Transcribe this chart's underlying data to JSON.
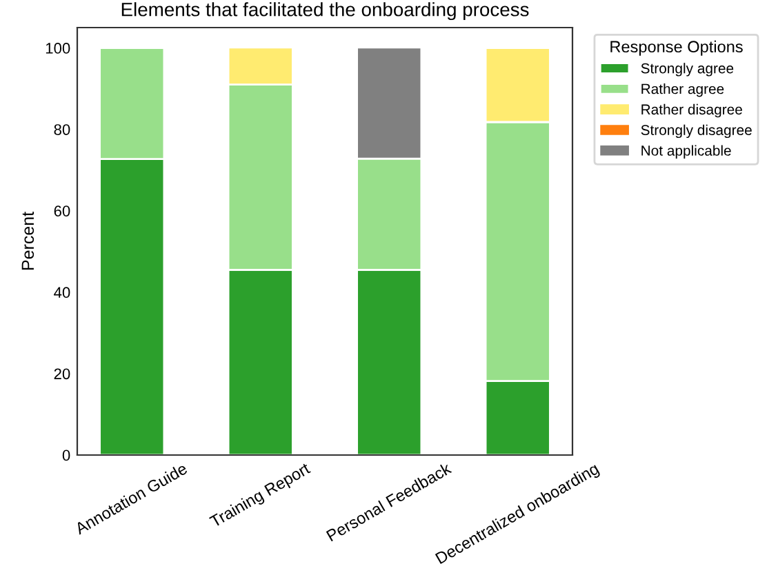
{
  "chart_data": {
    "type": "bar",
    "title": "Elements that facilitated the onboarding process",
    "ylabel": "Percent",
    "legend_title": "Response Options",
    "stacked": true,
    "legend": "top right",
    "grid": false,
    "categories": [
      "Annotation Guide",
      "Training Report",
      "Personal Feedback",
      "Decentralized onboarding"
    ],
    "ylim": [
      0,
      105
    ],
    "yticks": [
      0,
      20,
      40,
      60,
      80,
      100
    ],
    "series": [
      {
        "name": "Strongly agree",
        "color": "#2ca02c",
        "values": [
          72.7,
          45.5,
          45.5,
          18.2
        ]
      },
      {
        "name": "Rather agree",
        "color": "#98df8a",
        "values": [
          27.3,
          45.5,
          27.3,
          63.6
        ]
      },
      {
        "name": "Rather disagree",
        "color": "#ffeb70",
        "values": [
          0,
          9.1,
          0,
          18.2
        ]
      },
      {
        "name": "Strongly disagree",
        "color": "#ff7f0e",
        "values": [
          0,
          0,
          0,
          0
        ]
      },
      {
        "name": "Not applicable",
        "color": "#808080",
        "values": [
          0,
          0,
          27.3,
          0
        ]
      }
    ]
  }
}
